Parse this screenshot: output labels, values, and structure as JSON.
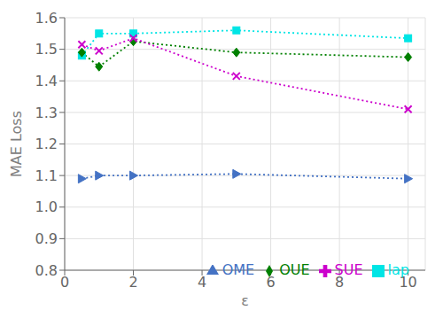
{
  "chart_data": {
    "type": "line",
    "x": [
      0.5,
      1,
      2,
      5,
      10
    ],
    "series": [
      {
        "name": "lap",
        "color": "#00E5E5",
        "values": [
          1.48,
          1.55,
          1.55,
          1.56,
          1.535
        ],
        "marker": "square",
        "line_style": "dotted"
      },
      {
        "name": "OUE",
        "color": "#008000",
        "values": [
          1.49,
          1.445,
          1.525,
          1.49,
          1.475
        ],
        "marker": "diamond",
        "line_style": "dotted"
      },
      {
        "name": "SUE",
        "color": "#CC00CC",
        "values": [
          1.515,
          1.495,
          1.535,
          1.415,
          1.31
        ],
        "marker": "x",
        "line_style": "dotted"
      },
      {
        "name": "OME",
        "color": "#4472C4",
        "values": [
          1.09,
          1.1,
          1.1,
          1.105,
          1.09
        ],
        "marker": "triangle-right",
        "line_style": "dotted"
      }
    ],
    "xlabel": "ε",
    "ylabel": "MAE Loss",
    "xlim": [
      0,
      10.5
    ],
    "ylim": [
      0.8,
      1.6
    ],
    "xticks": [
      0,
      2,
      4,
      6,
      8,
      10
    ],
    "yticks": [
      0.8,
      0.9,
      {
        "value": 1.0,
        "label": "1.0"
      },
      1.1,
      1.2,
      1.3,
      1.4,
      1.5,
      1.6
    ],
    "grid": true,
    "legend": "lower right"
  }
}
